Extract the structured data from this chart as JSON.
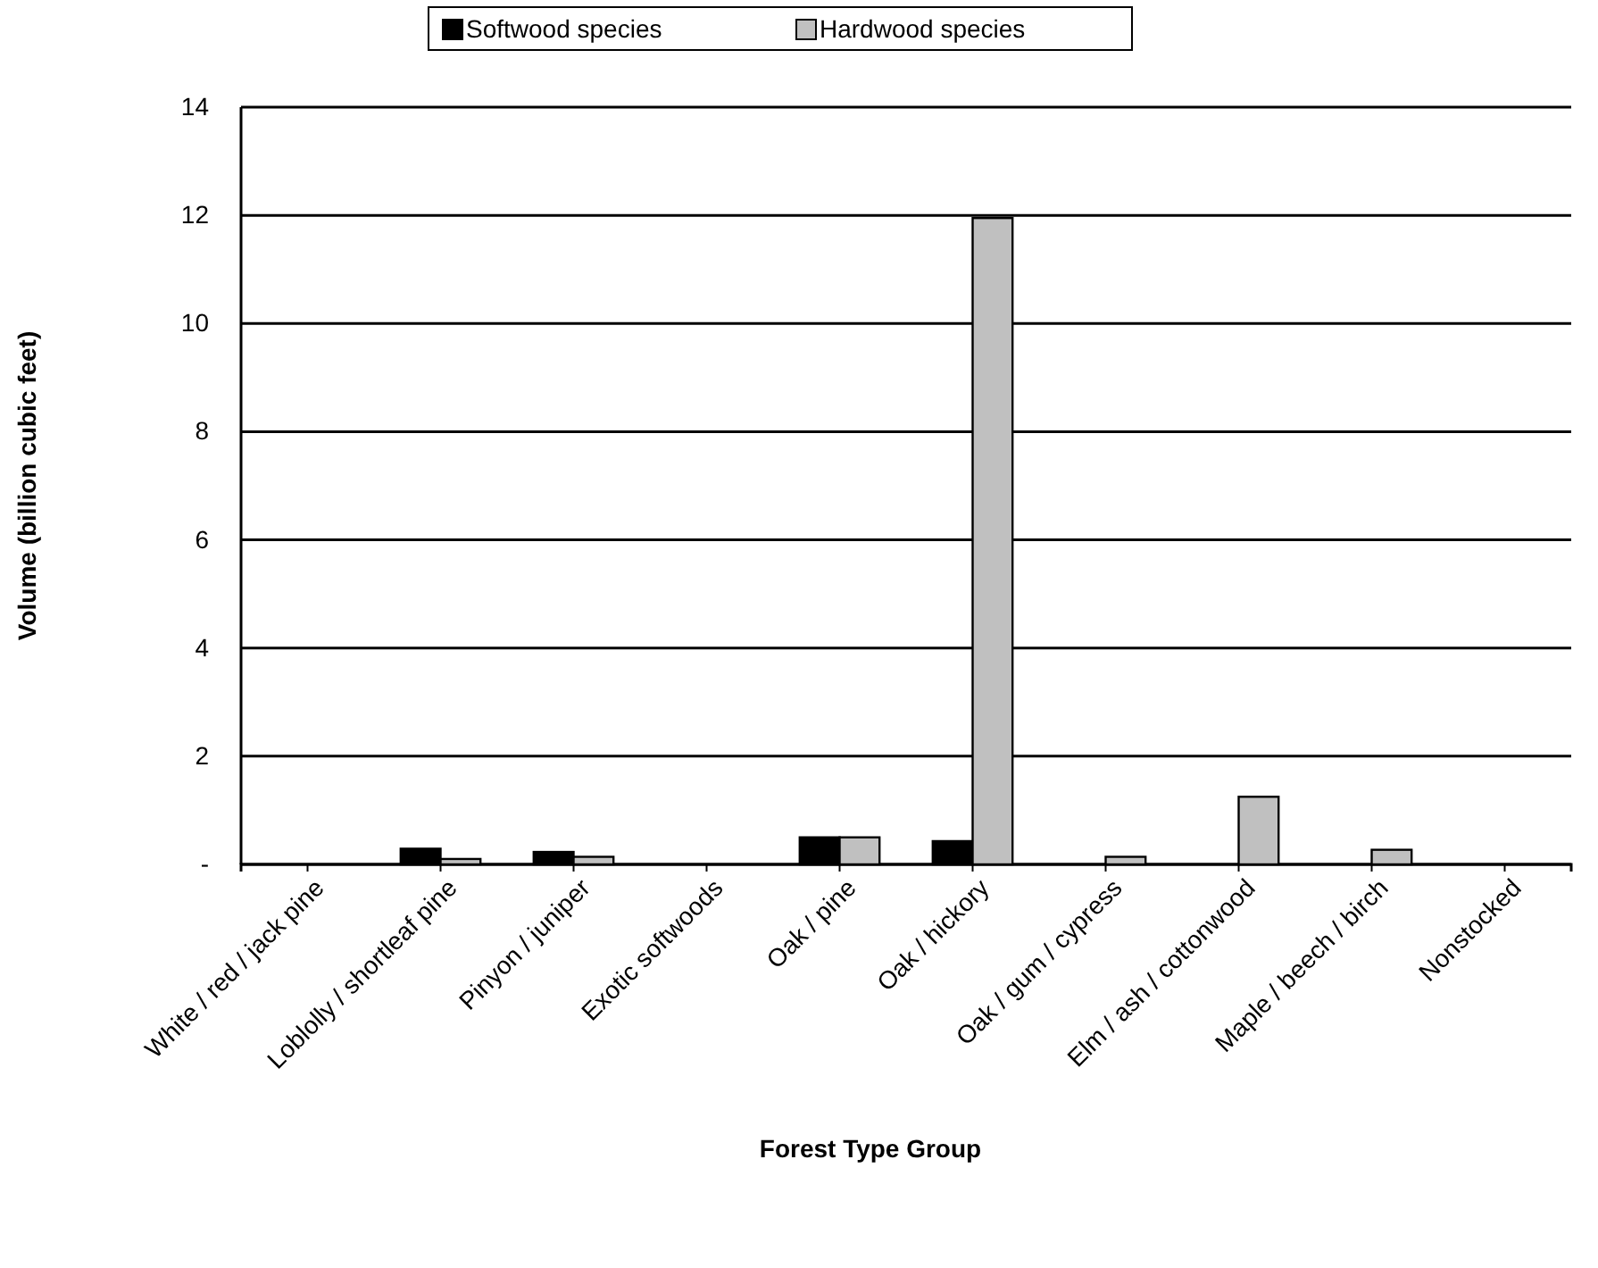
{
  "chart_data": {
    "type": "bar",
    "xlabel": "Forest Type Group",
    "ylabel": "Volume (billion cubic feet)",
    "categories": [
      "White / red / jack pine",
      "Loblolly / shortleaf pine",
      "Pinyon / juniper",
      "Exotic softwoods",
      "Oak / pine",
      "Oak / hickory",
      "Oak / gum / cypress",
      "Elm / ash / cottonwood",
      "Maple / beech / birch",
      "Nonstocked"
    ],
    "series": [
      {
        "name": "Softwood species",
        "color": "#000000",
        "values": [
          0,
          0.29,
          0.23,
          0,
          0.5,
          0.43,
          0,
          0,
          0,
          0
        ]
      },
      {
        "name": "Hardwood species",
        "color": "#c0c0c0",
        "values": [
          0,
          0.1,
          0.14,
          0,
          0.5,
          11.95,
          0.14,
          1.25,
          0.27,
          0
        ]
      }
    ],
    "ylim": [
      0,
      14
    ],
    "yticks": [
      {
        "value": 0,
        "label": "-"
      },
      2,
      4,
      6,
      8,
      10,
      12,
      14
    ],
    "grid": "y",
    "legend": "top"
  }
}
